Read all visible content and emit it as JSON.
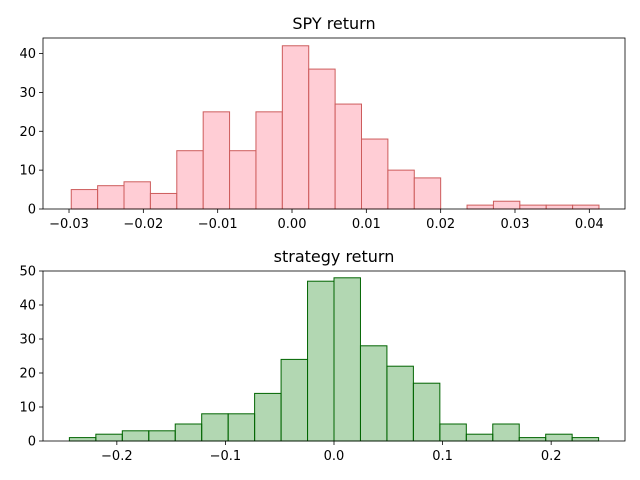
{
  "chart_data": [
    {
      "type": "bar",
      "title": "SPY return",
      "xlabel": "",
      "ylabel": "",
      "xlim": [
        -0.0335,
        0.0448
      ],
      "ylim": [
        0,
        44
      ],
      "xticks": [
        -0.03,
        -0.02,
        -0.01,
        0.0,
        0.01,
        0.02,
        0.03,
        0.04
      ],
      "xtick_labels": [
        "−0.03",
        "−0.02",
        "−0.01",
        "0.00",
        "0.01",
        "0.02",
        "0.03",
        "0.04"
      ],
      "yticks": [
        0,
        10,
        20,
        30,
        40
      ],
      "ytick_labels": [
        "0",
        "10",
        "20",
        "30",
        "40"
      ],
      "bin_start": -0.0297,
      "bin_width": 0.00355,
      "values": [
        5,
        6,
        7,
        4,
        15,
        25,
        15,
        25,
        42,
        36,
        27,
        18,
        10,
        8,
        0,
        1,
        2,
        1,
        1,
        1
      ],
      "fill_color": "#ffc0cb",
      "edge_color": "#cd5c5c",
      "fill_opacity": 0.8,
      "grid": false
    },
    {
      "type": "bar",
      "title": "strategy return",
      "xlabel": "",
      "ylabel": "",
      "xlim": [
        -0.268,
        0.268
      ],
      "ylim": [
        0,
        50
      ],
      "xticks": [
        -0.2,
        -0.1,
        0.0,
        0.1,
        0.2
      ],
      "xtick_labels": [
        "−0.2",
        "−0.1",
        "0.0",
        "0.1",
        "0.2"
      ],
      "yticks": [
        0,
        10,
        20,
        30,
        40,
        50
      ],
      "ytick_labels": [
        "0",
        "10",
        "20",
        "30",
        "40",
        "50"
      ],
      "bin_start": -0.2437,
      "bin_width": 0.02437,
      "values": [
        1,
        2,
        3,
        3,
        5,
        8,
        8,
        14,
        24,
        47,
        48,
        28,
        22,
        17,
        5,
        2,
        5,
        1,
        2,
        1
      ],
      "fill_color": "#228b22",
      "edge_color": "#006400",
      "fill_opacity": 0.35,
      "grid": false
    }
  ]
}
